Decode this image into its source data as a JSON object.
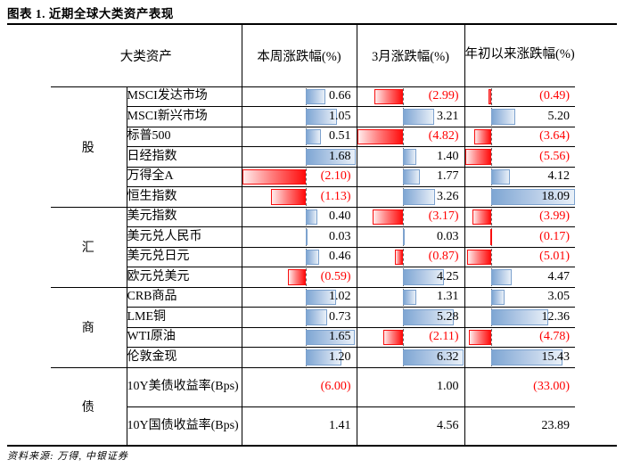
{
  "title": "图表 1. 近期全球大类资产表现",
  "source_note": "资料来源: 万得, 中银证券",
  "colors": {
    "negative_text": "#ff0000",
    "bar_positive": "#7ea6d3",
    "bar_negative": "#ff0000",
    "grid_line": "#000000"
  },
  "table": {
    "header": {
      "asset_class": "大类资产",
      "week": "本周涨跌幅(%)",
      "month": "3月涨跌幅(%)",
      "ytd": "年初以来涨跌幅(%)"
    }
  },
  "chart_data": {
    "type": "table",
    "title": "图表 1. 近期全球大类资产表现",
    "columns": [
      "大类资产",
      "本周涨跌幅(%)",
      "3月涨跌幅(%)",
      "年初以来涨跌幅(%)"
    ],
    "value_format": "negatives shown in red parentheses, data bars: blue positive / red negative",
    "groups": [
      {
        "category": "股",
        "bars": true,
        "rows": [
          {
            "name": "MSCI发达市场",
            "week": 0.66,
            "month": -2.99,
            "ytd": -0.49
          },
          {
            "name": "MSCI新兴市场",
            "week": 1.05,
            "month": 3.21,
            "ytd": 5.2
          },
          {
            "name": "标普500",
            "week": 0.51,
            "month": -4.82,
            "ytd": -3.64
          },
          {
            "name": "日经指数",
            "week": 1.68,
            "month": 1.4,
            "ytd": -5.56
          },
          {
            "name": "万得全A",
            "week": -2.1,
            "month": 1.77,
            "ytd": 4.12
          },
          {
            "name": "恒生指数",
            "week": -1.13,
            "month": 3.26,
            "ytd": 18.09
          }
        ]
      },
      {
        "category": "汇",
        "bars": true,
        "rows": [
          {
            "name": "美元指数",
            "week": 0.4,
            "month": -3.17,
            "ytd": -3.99
          },
          {
            "name": "美元兑人民币",
            "week": 0.03,
            "month": 0.03,
            "ytd": -0.17
          },
          {
            "name": "美元兑日元",
            "week": 0.46,
            "month": -0.87,
            "ytd": -5.01
          },
          {
            "name": "欧元兑美元",
            "week": -0.59,
            "month": 4.25,
            "ytd": 4.47
          }
        ]
      },
      {
        "category": "商",
        "bars": true,
        "rows": [
          {
            "name": "CRB商品",
            "week": 1.02,
            "month": 1.31,
            "ytd": 3.05
          },
          {
            "name": "LME铜",
            "week": 0.73,
            "month": 5.28,
            "ytd": 12.36
          },
          {
            "name": "WTI原油",
            "week": 1.65,
            "month": -2.11,
            "ytd": -4.78
          },
          {
            "name": "伦敦金现",
            "week": 1.2,
            "month": 6.32,
            "ytd": 15.43
          }
        ]
      },
      {
        "category": "债",
        "bars": false,
        "rows": [
          {
            "name": "10Y美债收益率(Bps)",
            "week": -6.0,
            "month": 1.0,
            "ytd": -33.0
          },
          {
            "name": "10Y国债收益率(Bps)",
            "week": 1.41,
            "month": 4.56,
            "ytd": 23.89
          }
        ]
      }
    ]
  }
}
